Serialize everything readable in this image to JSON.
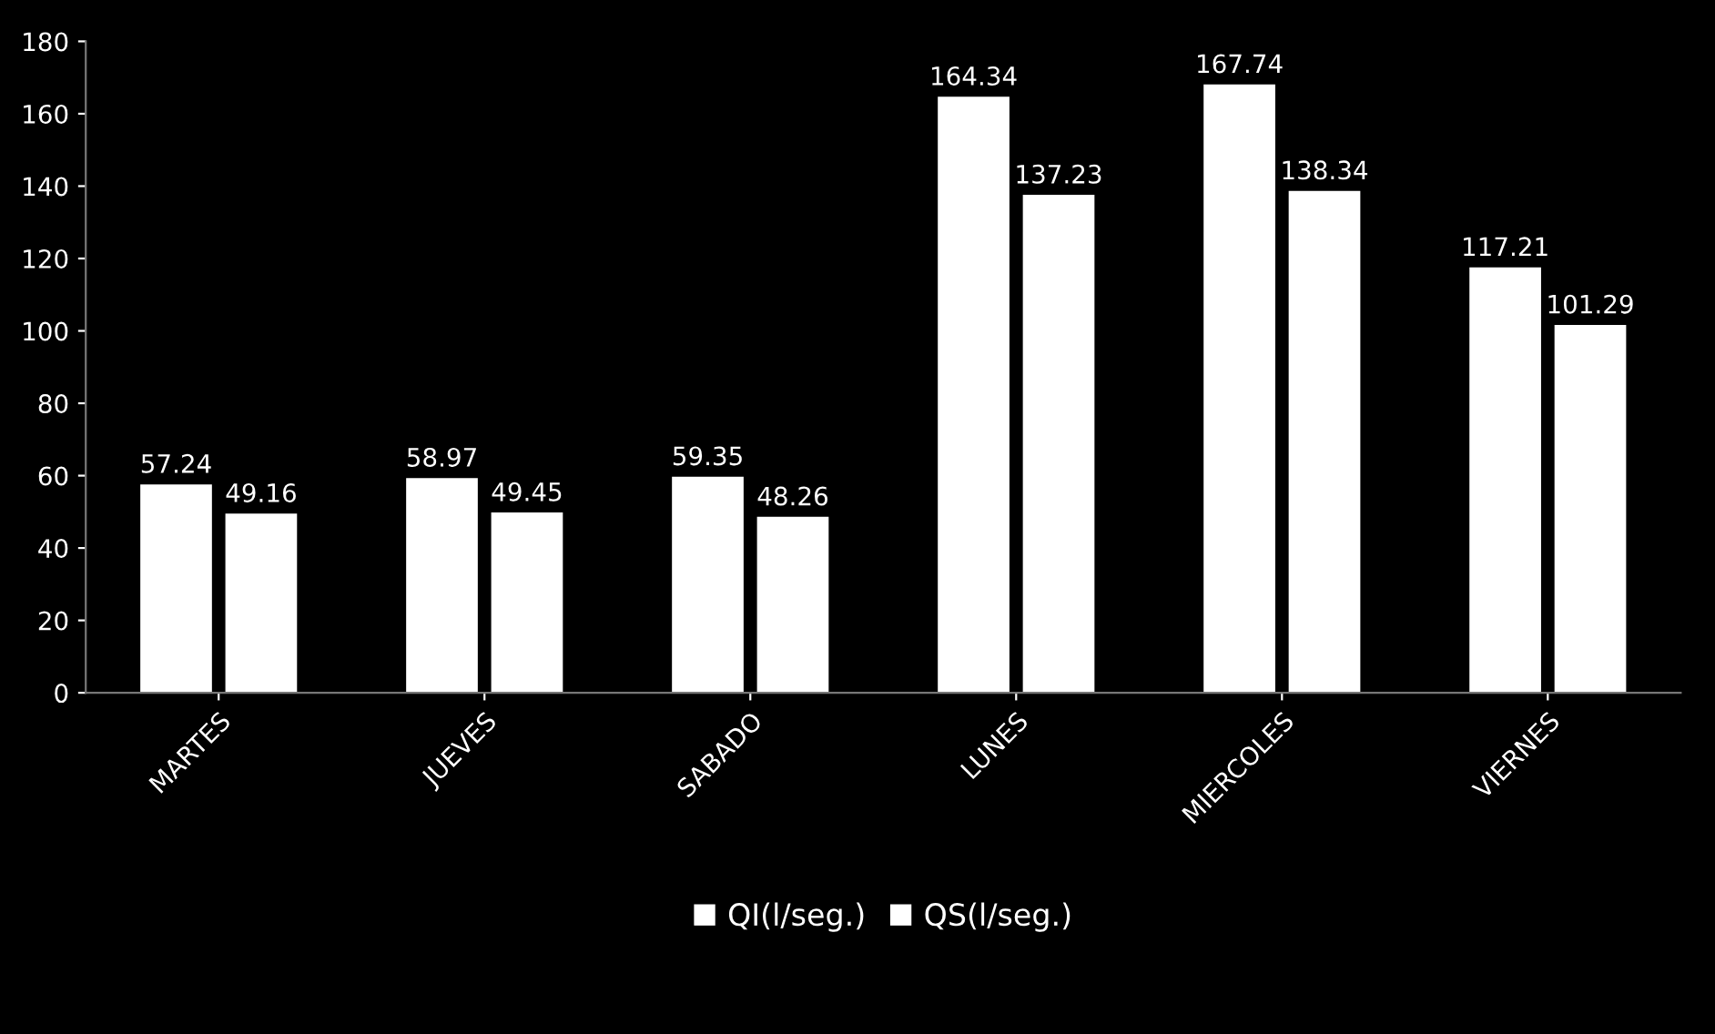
{
  "chart_data": {
    "type": "bar",
    "categories": [
      "MARTES",
      "JUEVES",
      "SABADO",
      "LUNES",
      "MIERCOLES",
      "VIERNES"
    ],
    "series": [
      {
        "name": "QI(l/seg.)",
        "color": "#ffffff",
        "values": [
          57.24,
          58.97,
          59.35,
          164.34,
          167.74,
          117.21
        ]
      },
      {
        "name": "QS(l/seg.)",
        "color": "#ffffff",
        "values": [
          49.16,
          49.45,
          48.26,
          137.23,
          138.34,
          101.29
        ]
      }
    ],
    "ylim": [
      0,
      180
    ],
    "yticks": [
      0,
      20,
      40,
      60,
      80,
      100,
      120,
      140,
      160,
      180
    ],
    "data_labels": true,
    "legend": "bottom",
    "grid": false
  }
}
